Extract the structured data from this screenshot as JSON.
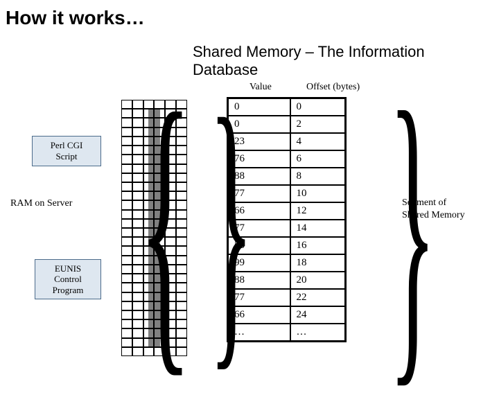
{
  "title": "How it works…",
  "subtitle": "Shared Memory – The Information Database",
  "headers": {
    "value": "Value",
    "offset": "Offset (bytes)"
  },
  "table": {
    "rows": [
      {
        "value": "0",
        "offset": "0"
      },
      {
        "value": "0",
        "offset": "2"
      },
      {
        "value": "23",
        "offset": "4"
      },
      {
        "value": "76",
        "offset": "6"
      },
      {
        "value": "88",
        "offset": "8"
      },
      {
        "value": "77",
        "offset": "10"
      },
      {
        "value": "66",
        "offset": "12"
      },
      {
        "value": "77",
        "offset": "14"
      },
      {
        "value": "55",
        "offset": "16"
      },
      {
        "value": "99",
        "offset": "18"
      },
      {
        "value": "88",
        "offset": "20"
      },
      {
        "value": "77",
        "offset": "22"
      },
      {
        "value": "66",
        "offset": "24"
      },
      {
        "value": "…",
        "offset": "…"
      }
    ],
    "border_color": "#000000",
    "cell_bg": "#ffffff"
  },
  "labels": {
    "ram": "RAM on Server",
    "segment_l1": "Segment of",
    "segment_l2": "Shared Memory",
    "perl_l1": "Perl CGI",
    "perl_l2": "Script",
    "eunis_l1": "EUNIS",
    "eunis_l2": "Control",
    "eunis_l3": "Program"
  },
  "ram_grid": {
    "cols": 6,
    "rows": 28,
    "shaded_col_color": "#808080"
  },
  "colors": {
    "text": "#000000",
    "box_border": "#4a6a8a",
    "box_fill": "rgba(200,215,230,0.6)",
    "background": "#ffffff"
  }
}
